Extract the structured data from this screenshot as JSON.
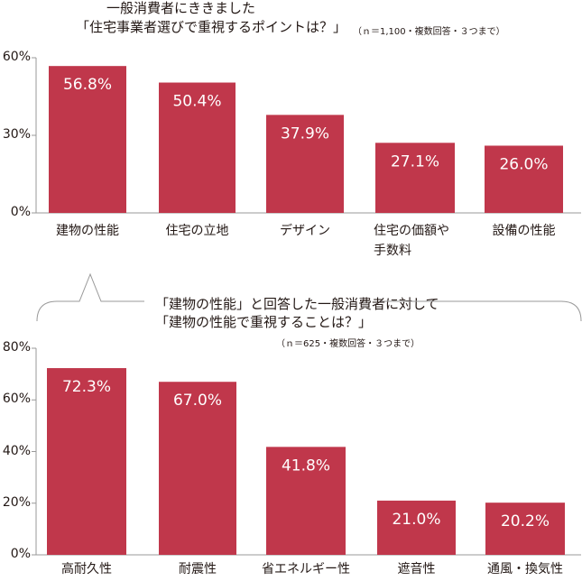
{
  "colors": {
    "bar": "#c0374b",
    "axis": "#999999",
    "text": "#231815",
    "label": "#ffffff"
  },
  "header": {
    "line1": "一般消費者にききました",
    "line2": "「住宅事業者選びで重視するポイントは？」",
    "note": "（ｎ＝1,100・複数回答・３つまで）"
  },
  "sub_header": {
    "line1": "「建物の性能」と回答した一般消費者に対して",
    "line2": "「建物の性能で重視することは？」",
    "note": "（ｎ＝625・複数回答・３つまで）"
  },
  "chart_data": [
    {
      "type": "bar",
      "title": "住宅事業者選びで重視するポイントは？",
      "categories": [
        "建物の性能",
        "住宅の立地",
        "デザイン",
        "住宅の価額や手数料",
        "設備の性能"
      ],
      "category_lines": [
        [
          "建物の性能"
        ],
        [
          "住宅の立地"
        ],
        [
          "デザイン"
        ],
        [
          "住宅の価額や",
          "手数料"
        ],
        [
          "設備の性能"
        ]
      ],
      "values": [
        56.8,
        50.4,
        37.9,
        27.1,
        26.0
      ],
      "value_labels": [
        "56.8%",
        "50.4%",
        "37.9%",
        "27.1%",
        "26.0%"
      ],
      "ylim": [
        0,
        60
      ],
      "yticks": [
        0,
        30,
        60
      ],
      "ytick_labels": [
        "0%",
        "30%",
        "60%"
      ]
    },
    {
      "type": "bar",
      "title": "建物の性能で重視することは？",
      "categories": [
        "高耐久性",
        "耐震性",
        "省エネルギー性",
        "遮音性",
        "通風・換気性"
      ],
      "category_lines": [
        [
          "高耐久性"
        ],
        [
          "耐震性"
        ],
        [
          "省エネルギー性"
        ],
        [
          "遮音性"
        ],
        [
          "通風・換気性"
        ]
      ],
      "values": [
        72.3,
        67.0,
        41.8,
        21.0,
        20.2
      ],
      "value_labels": [
        "72.3%",
        "67.0%",
        "41.8%",
        "21.0%",
        "20.2%"
      ],
      "ylim": [
        0,
        80
      ],
      "yticks": [
        0,
        20,
        40,
        60,
        80
      ],
      "ytick_labels": [
        "0%",
        "20%",
        "40%",
        "60%",
        "80%"
      ]
    }
  ]
}
